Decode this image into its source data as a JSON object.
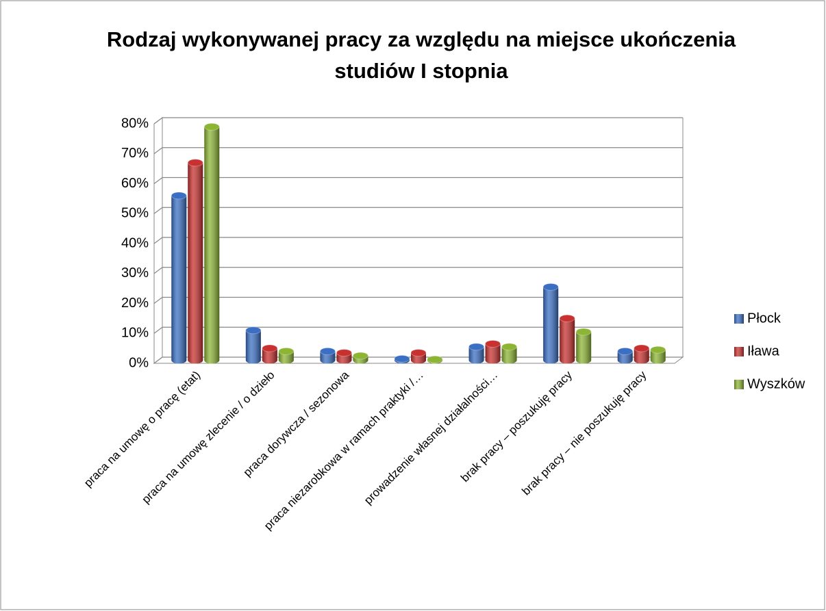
{
  "chart_data": {
    "type": "bar3d",
    "title": [
      "Rodzaj wykonywanej pracy za względu na miejsce ukończenia",
      "studiów I stopnia"
    ],
    "categories": [
      "praca na umowę o pracę (etat)",
      "praca na umowę zlecenie / o dzieło",
      "praca dorywcza / sezonowa",
      "praca niezarobkowa w ramach praktyki /…",
      "prowadzenie własnej działalności…",
      "brak pracy – poszukuję pracy",
      "brak pracy – nie poszukuję pracy"
    ],
    "series": [
      {
        "name": "Płock",
        "color": "#3a6fc4",
        "values": [
          55,
          10,
          3,
          0.5,
          4.5,
          24.5,
          3
        ]
      },
      {
        "name": "Iława",
        "color": "#c8312f",
        "values": [
          66,
          4,
          2.5,
          2.5,
          5.5,
          14,
          4
        ]
      },
      {
        "name": "Wyszków",
        "color": "#8db534",
        "values": [
          78,
          3,
          1.5,
          0.3,
          4.5,
          9.5,
          3.5
        ]
      }
    ],
    "ylim": [
      0,
      80
    ],
    "yticks": [
      {
        "value": 0,
        "label": "0%"
      },
      {
        "value": 10,
        "label": "10%"
      },
      {
        "value": 20,
        "label": "20%"
      },
      {
        "value": 30,
        "label": "30%"
      },
      {
        "value": 40,
        "label": "40%"
      },
      {
        "value": 50,
        "label": "50%"
      },
      {
        "value": 60,
        "label": "60%"
      },
      {
        "value": 70,
        "label": "70%"
      },
      {
        "value": 80,
        "label": "80%"
      }
    ],
    "grid": true,
    "legend": "right"
  }
}
